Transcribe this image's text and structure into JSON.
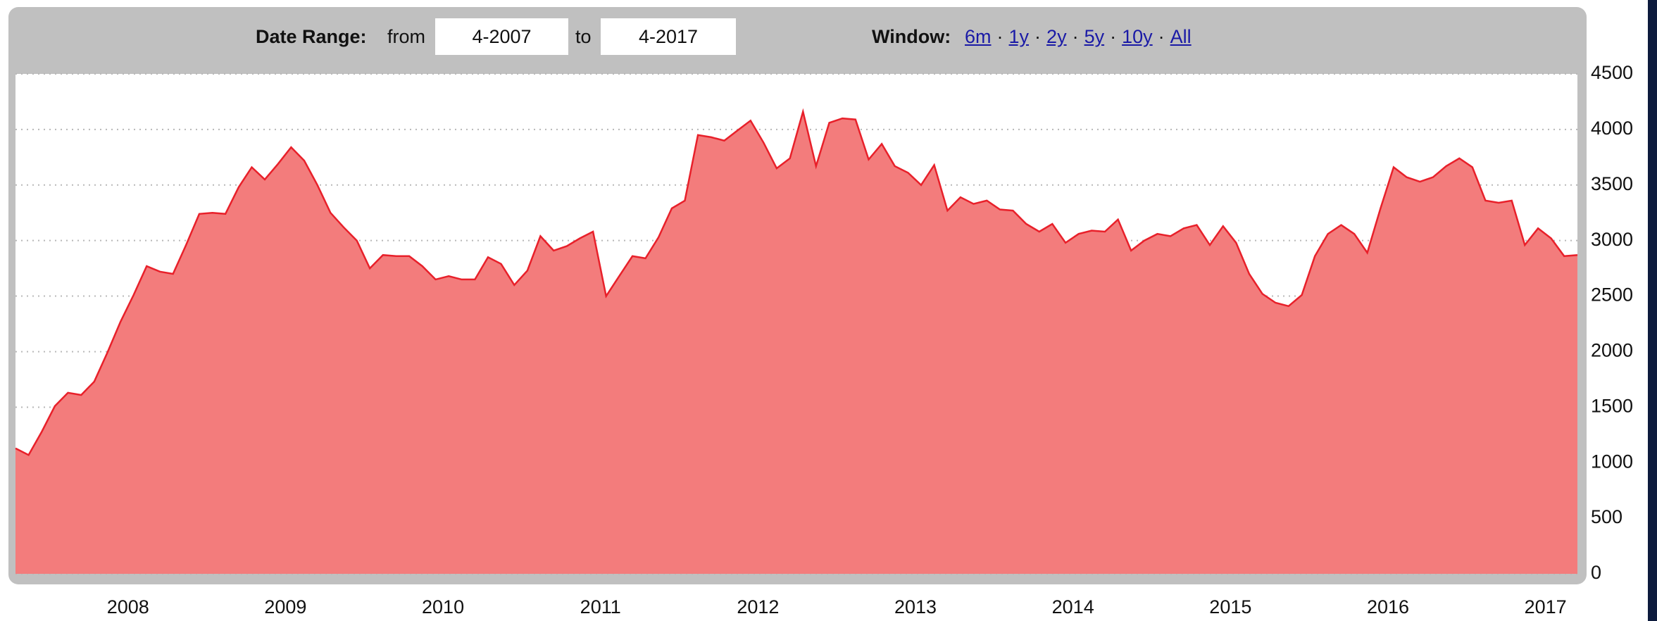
{
  "header": {
    "date_range_label": "Date Range:",
    "from_label": "from",
    "from_value": "4-2007",
    "to_label": "to",
    "to_value": "4-2017",
    "window_label": "Window:",
    "window_links": [
      "6m",
      "1y",
      "2y",
      "5y",
      "10y",
      "All"
    ],
    "separator": "·"
  },
  "chart_data": {
    "type": "area",
    "x": [
      2007.25,
      2007.333,
      2007.417,
      2007.5,
      2007.583,
      2007.667,
      2007.75,
      2007.833,
      2007.917,
      2008,
      2008.083,
      2008.167,
      2008.25,
      2008.333,
      2008.417,
      2008.5,
      2008.583,
      2008.667,
      2008.75,
      2008.833,
      2008.917,
      2009,
      2009.083,
      2009.167,
      2009.25,
      2009.333,
      2009.417,
      2009.5,
      2009.583,
      2009.667,
      2009.75,
      2009.833,
      2009.917,
      2010,
      2010.083,
      2010.167,
      2010.25,
      2010.333,
      2010.417,
      2010.5,
      2010.583,
      2010.667,
      2010.75,
      2010.833,
      2010.917,
      2011,
      2011.083,
      2011.167,
      2011.25,
      2011.333,
      2011.417,
      2011.5,
      2011.583,
      2011.667,
      2011.75,
      2011.833,
      2011.917,
      2012,
      2012.083,
      2012.167,
      2012.25,
      2012.333,
      2012.417,
      2012.5,
      2012.583,
      2012.667,
      2012.75,
      2012.833,
      2012.917,
      2013,
      2013.083,
      2013.167,
      2013.25,
      2013.333,
      2013.417,
      2013.5,
      2013.583,
      2013.667,
      2013.75,
      2013.833,
      2013.917,
      2014,
      2014.083,
      2014.167,
      2014.25,
      2014.333,
      2014.417,
      2014.5,
      2014.583,
      2014.667,
      2014.75,
      2014.833,
      2014.917,
      2015,
      2015.083,
      2015.167,
      2015.25,
      2015.333,
      2015.417,
      2015.5,
      2015.583,
      2015.667,
      2015.75,
      2015.833,
      2015.917,
      2016,
      2016.083,
      2016.167,
      2016.25,
      2016.333,
      2016.417,
      2016.5,
      2016.583,
      2016.667,
      2016.75,
      2016.833,
      2016.917,
      2017,
      2017.083,
      2017.167
    ],
    "values": [
      1130,
      1070,
      1280,
      1510,
      1630,
      1610,
      1730,
      1990,
      2270,
      2510,
      2770,
      2720,
      2700,
      2960,
      3240,
      3250,
      3240,
      3480,
      3660,
      3550,
      3690,
      3840,
      3720,
      3500,
      3250,
      3120,
      3000,
      2750,
      2870,
      2860,
      2860,
      2770,
      2650,
      2680,
      2650,
      2650,
      2850,
      2790,
      2600,
      2730,
      3040,
      2910,
      2950,
      3020,
      3080,
      2500,
      2680,
      2860,
      2840,
      3030,
      3290,
      3360,
      3950,
      3930,
      3900,
      3990,
      4080,
      3880,
      3650,
      3740,
      4160,
      3670,
      4060,
      4100,
      4090,
      3730,
      3870,
      3670,
      3610,
      3500,
      3680,
      3270,
      3390,
      3330,
      3360,
      3280,
      3270,
      3150,
      3080,
      3150,
      2980,
      3060,
      3090,
      3080,
      3190,
      2910,
      3000,
      3060,
      3040,
      3110,
      3140,
      2960,
      3130,
      2980,
      2700,
      2520,
      2440,
      2410,
      2510,
      2860,
      3060,
      3140,
      3060,
      2890,
      3290,
      3660,
      3570,
      3530,
      3570,
      3670,
      3740,
      3660,
      3360,
      3340,
      3360,
      2960,
      3110,
      3020,
      2860,
      2870
    ],
    "color": "#f37c7c",
    "line_color": "#e8202a",
    "xlim": [
      2007.25,
      2017.167
    ],
    "xticks": [
      2008,
      2009,
      2010,
      2011,
      2012,
      2013,
      2014,
      2015,
      2016,
      2017
    ],
    "ylim": [
      0,
      4500
    ],
    "yticks": [
      0,
      500,
      1000,
      1500,
      2000,
      2500,
      3000,
      3500,
      4000,
      4500
    ],
    "grid": true
  }
}
